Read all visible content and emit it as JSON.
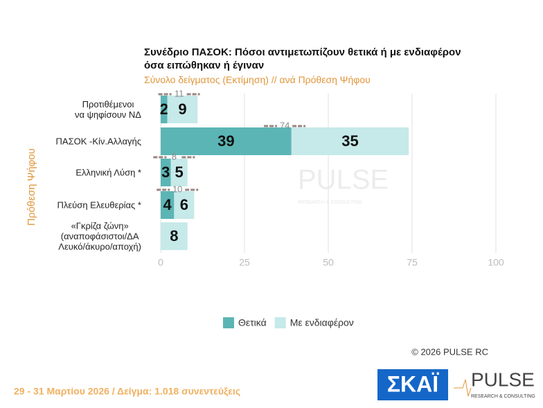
{
  "chart_data": {
    "type": "stacked-barh",
    "title": "Συνέδριο ΠΑΣΟΚ: Πόσοι αντιμετωπίζουν θετικά ή με ενδιαφέρον\nόσα ειπώθηκαν ή έγιναν",
    "subtitle": "Σύνολο δείγματος  (Εκτίμηση) // ανά Πρόθεση  Ψήφου",
    "y_axis_label": "Πρόθεση  Ψήφου",
    "categories": [
      "Προτιθέμενοι\nνα ψηφίσουν ΝΔ",
      "ΠΑΣΟΚ -Κίν.Αλλαγής",
      "Ελληνική Λύση *",
      "Πλεύση Ελευθερίας *",
      "«Γκρίζα ζώνη»\n(αναποφάσιστοι/ΔΑ\nΛευκό/άκυρο/αποχή)"
    ],
    "series": [
      {
        "name": "Θετικά",
        "color": "#5cb5b5",
        "values": [
          2,
          39,
          3,
          4,
          null
        ]
      },
      {
        "name": "Με ενδιαφέρον",
        "color": "#c6e9e9",
        "values": [
          9,
          35,
          5,
          6,
          8
        ]
      }
    ],
    "totals": [
      11,
      74,
      8,
      10,
      null
    ],
    "xlim": [
      0,
      100
    ],
    "xticks": [
      0,
      25,
      50,
      75,
      100
    ],
    "grid": true,
    "legend": "bottom"
  },
  "footer": {
    "copyright": "©  2026  PULSE RC",
    "note": "29 - 31  Μαρτίου 2026  /  Δείγμα:  1.018 συνεντεύξεις"
  },
  "logos": {
    "skai": "ΣΚΑΪ",
    "pulse": "PULSE",
    "pulse_tagline": "RESEARCH & CONSULTING"
  }
}
